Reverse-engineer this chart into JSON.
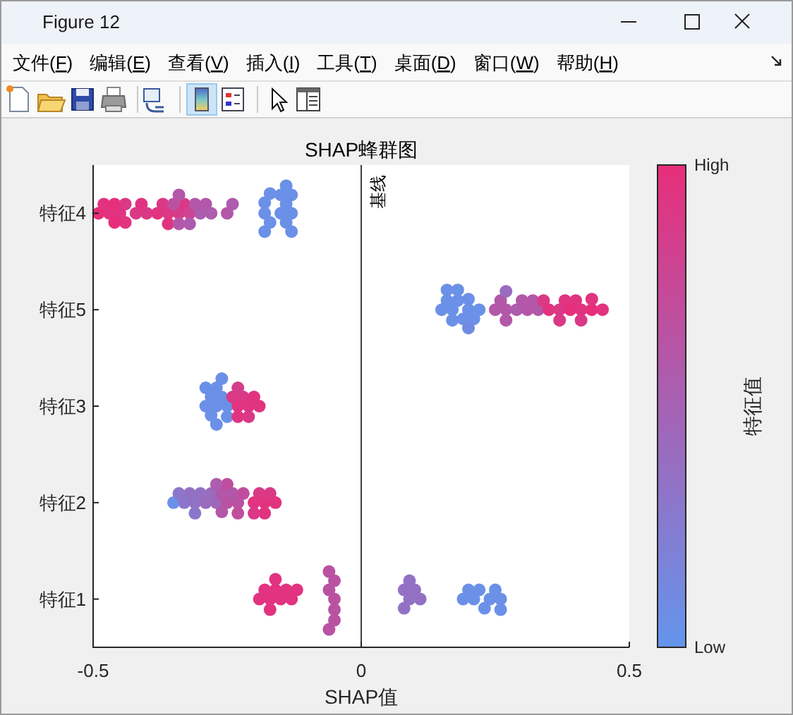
{
  "chart_data": {
    "type": "scatter",
    "title": "SHAP蜂群图",
    "xlabel": "SHAP值",
    "clabel": "特征值",
    "marker": "circle",
    "orientation": "horizontal",
    "annotations": [
      "Figure 12",
      "文件(F)",
      "编辑(E)",
      "查看(V)",
      "插入(I)",
      "工具(T)",
      "桌面(D)",
      "窗口(W)",
      "帮助(H)"
    ],
    "categories": [
      "特征4",
      "特征5",
      "特征3",
      "特征2",
      "特征1"
    ],
    "xlim": [
      -0.5,
      0.5
    ],
    "xticks": [
      -0.5,
      0,
      0.5
    ],
    "clim": [
      0,
      1
    ],
    "cticks": [
      {
        "value": 0,
        "label": "Low"
      },
      {
        "value": 1,
        "label": "High"
      }
    ],
    "ref_lines": [
      {
        "axis": "x",
        "value": 0,
        "label": "基线",
        "color": "#404040"
      }
    ],
    "series": [
      {
        "x": [
          "特征4",
          "特征4",
          "特征4",
          "特征4",
          "特征4",
          "特征4",
          "特征4",
          "特征4",
          "特征4",
          "特征4",
          "特征4",
          "特征4",
          "特征4",
          "特征4",
          "特征4",
          "特征4",
          "特征4",
          "特征4",
          "特征4",
          "特征4",
          "特征4",
          "特征4",
          "特征4",
          "特征4",
          "特征4",
          "特征4",
          "特征4",
          "特征4",
          "特征4",
          "特征4",
          "特征4",
          "特征4",
          "特征4",
          "特征4",
          "特征4",
          "特征4",
          "特征4",
          "特征4",
          "特征4",
          "特征4",
          "特征4"
        ],
        "values": [
          -0.49,
          -0.48,
          -0.47,
          -0.46,
          -0.45,
          -0.44,
          -0.44,
          -0.42,
          -0.41,
          -0.4,
          -0.38,
          -0.37,
          -0.36,
          -0.36,
          -0.34,
          -0.33,
          -0.32,
          -0.46,
          -0.34,
          -0.34,
          -0.32,
          -0.3,
          -0.29,
          -0.28,
          -0.25,
          -0.24,
          -0.35,
          -0.31,
          -0.18,
          -0.18,
          -0.17,
          -0.15,
          -0.14,
          -0.14,
          -0.13,
          -0.13,
          -0.13,
          -0.14,
          -0.15,
          -0.18,
          -0.17
        ],
        "colors": [
          "#e82e7a",
          "#e13380",
          "#e13380",
          "#e82e7a",
          "#e13380",
          "#db3886",
          "#e13380",
          "#db3886",
          "#e13380",
          "#db3886",
          "#e13380",
          "#db3886",
          "#db3886",
          "#e13380",
          "#d43d8b",
          "#db3886",
          "#ce4391",
          "#e82e7a",
          "#b357a8",
          "#b357a8",
          "#ad5cae",
          "#ad5cae",
          "#b357a8",
          "#ad5cae",
          "#b357a8",
          "#ad5cae",
          "#ba52a2",
          "#b357a8",
          "#6b90e7",
          "#6b90e7",
          "#6b90e7",
          "#6b90e7",
          "#6b90e7",
          "#6b90e7",
          "#6b90e7",
          "#6b90e7",
          "#6b90e7",
          "#6b90e7",
          "#6b90e7",
          "#6b90e7",
          "#6b90e7"
        ]
      },
      {
        "x": [
          "特征5",
          "特征5",
          "特征5",
          "特征5",
          "特征5",
          "特征5",
          "特征5",
          "特征5",
          "特征5",
          "特征5",
          "特征5",
          "特征5",
          "特征5",
          "特征5",
          "特征5",
          "特征5",
          "特征5",
          "特征5",
          "特征5",
          "特征5",
          "特征5",
          "特征5",
          "特征5",
          "特征5",
          "特征5",
          "特征5",
          "特征5",
          "特征5",
          "特征5",
          "特征5",
          "特征5",
          "特征5",
          "特征5",
          "特征5",
          "特征5"
        ],
        "values": [
          0.15,
          0.16,
          0.17,
          0.17,
          0.18,
          0.2,
          0.2,
          0.21,
          0.22,
          0.19,
          0.2,
          0.16,
          0.18,
          0.25,
          0.26,
          0.27,
          0.29,
          0.27,
          0.31,
          0.32,
          0.33,
          0.27,
          0.3,
          0.34,
          0.35,
          0.37,
          0.38,
          0.39,
          0.4,
          0.41,
          0.43,
          0.43,
          0.45,
          0.41,
          0.37
        ],
        "colors": [
          "#6b90e7",
          "#6b90e7",
          "#6b90e7",
          "#6b90e7",
          "#6b90e7",
          "#6b90e7",
          "#6b90e7",
          "#6b90e7",
          "#6b90e7",
          "#6b90e7",
          "#718be2",
          "#6b90e7",
          "#6b90e7",
          "#b357a8",
          "#b357a8",
          "#b357a8",
          "#ad5cae",
          "#b357a8",
          "#b357a8",
          "#b357a8",
          "#b357a8",
          "#996cbf",
          "#b357a8",
          "#db3886",
          "#e13380",
          "#db3886",
          "#e13380",
          "#e82e7a",
          "#e13380",
          "#e13380",
          "#e82e7a",
          "#e13380",
          "#e13380",
          "#db3886",
          "#db3886"
        ]
      },
      {
        "x": [
          "特征3",
          "特征3",
          "特征3",
          "特征3",
          "特征3",
          "特征3",
          "特征3",
          "特征3",
          "特征3",
          "特征3",
          "特征3",
          "特征3",
          "特征3",
          "特征3",
          "特征3",
          "特征3",
          "特征3",
          "特征3",
          "特征3",
          "特征3"
        ],
        "values": [
          -0.29,
          -0.28,
          -0.28,
          -0.27,
          -0.27,
          -0.26,
          -0.25,
          -0.29,
          -0.27,
          -0.25,
          -0.26,
          -0.24,
          -0.23,
          -0.23,
          -0.22,
          -0.21,
          -0.23,
          -0.2,
          -0.19,
          -0.21
        ],
        "colors": [
          "#6b90e7",
          "#6b90e7",
          "#6b90e7",
          "#6b90e7",
          "#6b90e7",
          "#6b90e7",
          "#6b90e7",
          "#6b90e7",
          "#6b90e7",
          "#6b90e7",
          "#6b90e7",
          "#db3886",
          "#e13380",
          "#e13380",
          "#db3886",
          "#e13380",
          "#d43d8b",
          "#e13380",
          "#e13380",
          "#db3886"
        ]
      },
      {
        "x": [
          "特征2",
          "特征2",
          "特征2",
          "特征2",
          "特征2",
          "特征2",
          "特征2",
          "特征2",
          "特征2",
          "特征2",
          "特征2",
          "特征2",
          "特征2",
          "特征2",
          "特征2",
          "特征2",
          "特征2",
          "特征2",
          "特征2",
          "特征2",
          "特征2",
          "特征2",
          "特征2",
          "特征2",
          "特征2",
          "特征2"
        ],
        "values": [
          -0.35,
          -0.34,
          -0.33,
          -0.32,
          -0.31,
          -0.31,
          -0.3,
          -0.29,
          -0.28,
          -0.27,
          -0.26,
          -0.26,
          -0.25,
          -0.25,
          -0.24,
          -0.23,
          -0.23,
          -0.22,
          -0.27,
          -0.2,
          -0.19,
          -0.18,
          -0.18,
          -0.17,
          -0.16,
          -0.2
        ],
        "colors": [
          "#6b90e7",
          "#8c76cb",
          "#8c76cb",
          "#9271c5",
          "#9271c5",
          "#8c76cb",
          "#9271c5",
          "#996cbf",
          "#996cbf",
          "#9f67b9",
          "#b357a8",
          "#b357a8",
          "#ba52a2",
          "#c04d9d",
          "#b357a8",
          "#ba52a2",
          "#c04d9d",
          "#c04d9d",
          "#ad5cae",
          "#e13380",
          "#db3886",
          "#e13380",
          "#e13380",
          "#db3886",
          "#e13380",
          "#db3886"
        ]
      },
      {
        "x": [
          "特征1",
          "特征1",
          "特征1",
          "特征1",
          "特征1",
          "特征1",
          "特征1",
          "特征1",
          "特征1",
          "特征1",
          "特征1",
          "特征1",
          "特征1",
          "特征1",
          "特征1",
          "特征1",
          "特征1",
          "特征1",
          "特征1",
          "特征1",
          "特征1",
          "特征1",
          "特征1",
          "特征1",
          "特征1",
          "特征1",
          "特征1",
          "特征1",
          "特征1",
          "特征1",
          "特征1",
          "特征1"
        ],
        "values": [
          -0.17,
          -0.19,
          -0.18,
          -0.17,
          -0.16,
          -0.15,
          -0.14,
          -0.13,
          -0.12,
          -0.16,
          -0.05,
          -0.06,
          -0.05,
          -0.05,
          -0.05,
          -0.06,
          -0.06,
          0.09,
          0.11,
          0.08,
          0.08,
          0.1,
          0.09,
          0.19,
          0.2,
          0.21,
          0.22,
          0.24,
          0.25,
          0.26,
          0.26,
          0.23
        ],
        "colors": [
          "#e13380",
          "#e13380",
          "#e13380",
          "#e13380",
          "#e13380",
          "#e13380",
          "#e13380",
          "#e13380",
          "#e13380",
          "#e13380",
          "#ba52a2",
          "#ba52a2",
          "#ba52a2",
          "#ba52a2",
          "#ba52a2",
          "#ba52a2",
          "#ba52a2",
          "#9271c5",
          "#9271c5",
          "#9271c5",
          "#9271c5",
          "#9271c5",
          "#9271c5",
          "#6b90e7",
          "#6b90e7",
          "#6b90e7",
          "#6b90e7",
          "#6b90e7",
          "#6b90e7",
          "#6b90e7",
          "#6b90e7",
          "#6b90e7"
        ]
      }
    ]
  }
}
